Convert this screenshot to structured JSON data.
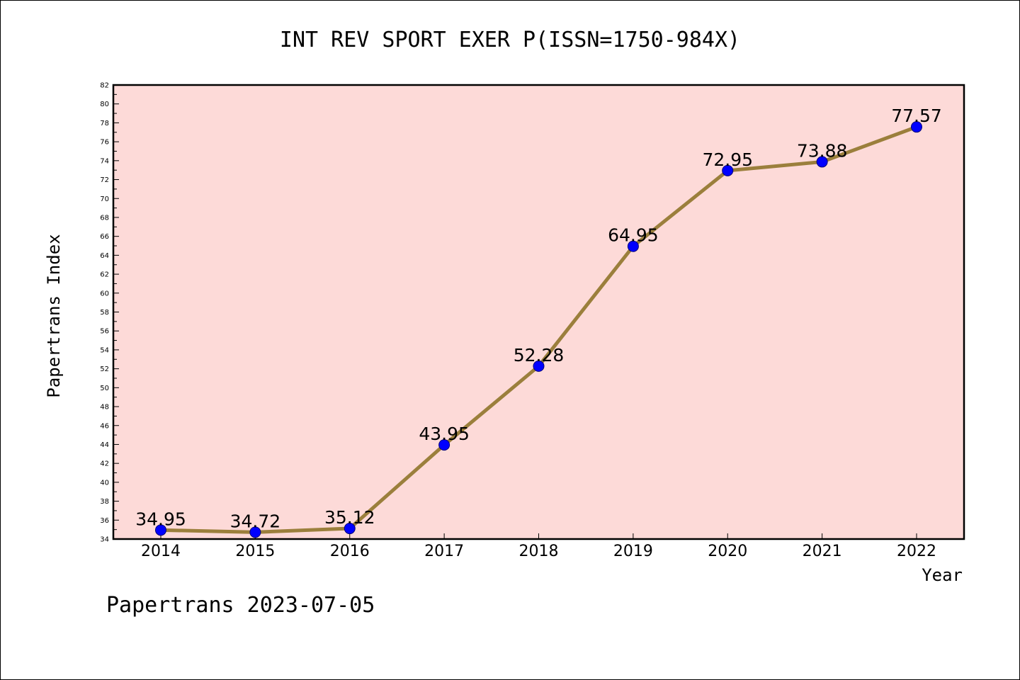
{
  "chart_data": {
    "type": "line",
    "title": "INT REV SPORT EXER P(ISSN=1750-984X)",
    "xlabel": "Year",
    "ylabel": "Papertrans Index",
    "footer": "Papertrans 2023-07-05",
    "categories": [
      "2014",
      "2015",
      "2016",
      "2017",
      "2018",
      "2019",
      "2020",
      "2021",
      "2022"
    ],
    "series": [
      {
        "values": [
          34.95,
          34.72,
          35.12,
          43.95,
          52.28,
          64.95,
          72.95,
          73.88,
          77.57
        ],
        "labels": [
          "34.95",
          "34.72",
          "35.12",
          "43.95",
          "52.28",
          "64.95",
          "72.95",
          "73.88",
          "77.57"
        ]
      }
    ],
    "ylim": [
      34,
      82
    ],
    "yticks": [
      "34",
      "36",
      "38",
      "40",
      "42",
      "44",
      "46",
      "48",
      "50",
      "52",
      "54",
      "56",
      "58",
      "60",
      "62",
      "64",
      "66",
      "68",
      "70",
      "72",
      "74",
      "76",
      "78",
      "80",
      "82"
    ],
    "grid": false,
    "legend": "none",
    "colors": {
      "plot_background": "#fddad8",
      "line": "#9b7f3c",
      "marker": "#0000ff"
    }
  }
}
